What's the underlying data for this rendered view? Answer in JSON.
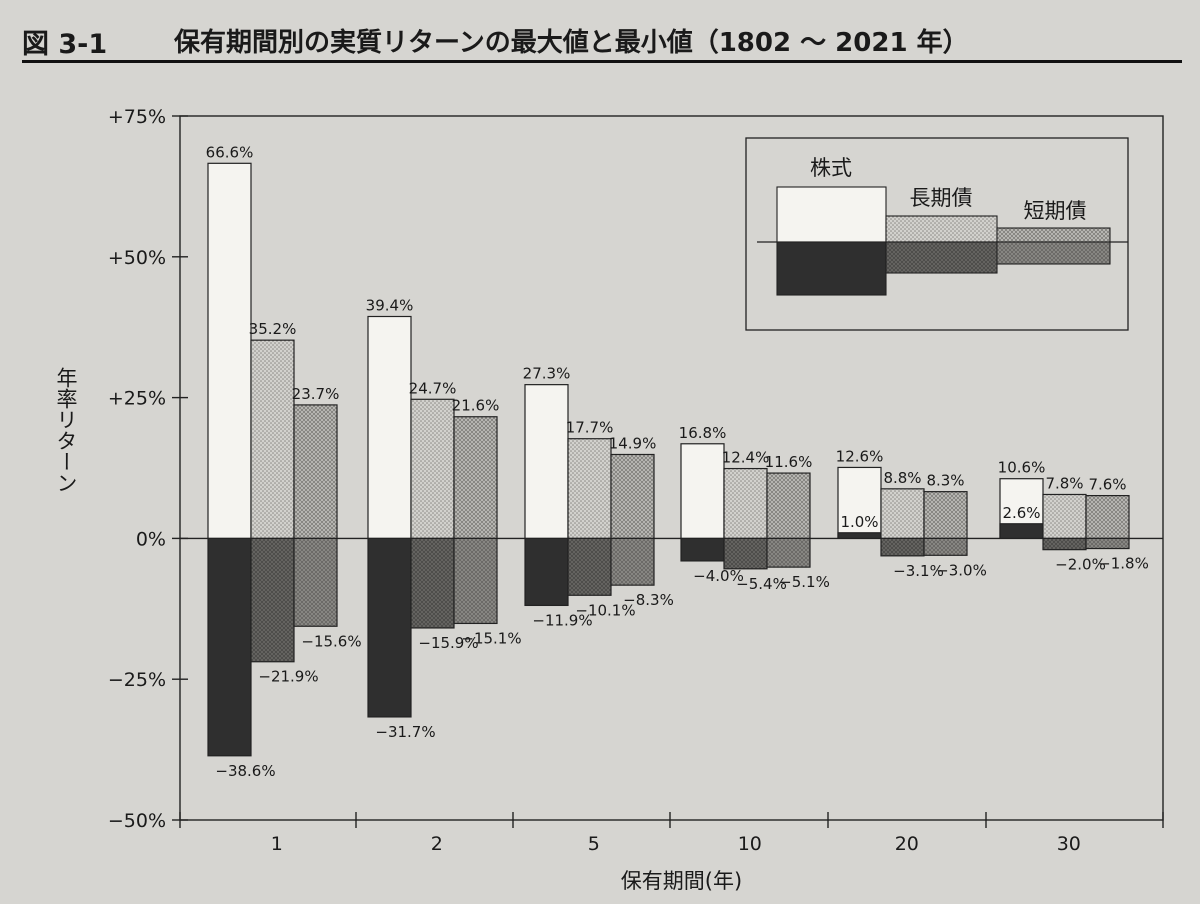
{
  "figure": {
    "number": "図 3-1",
    "title": "保有期間別の実質リターンの最大値と最小値（1802 ～ 2021 年）"
  },
  "chart_data": {
    "type": "bar",
    "xlabel": "保有期間(年)",
    "ylabel": "年率リターン",
    "ylim": [
      -50,
      75
    ],
    "yticks": [
      75,
      50,
      25,
      0,
      -25,
      -50
    ],
    "ytick_labels": [
      "+75%",
      "+50%",
      "+25%",
      "0%",
      "−25%",
      "−50%"
    ],
    "categories": [
      "1",
      "2",
      "5",
      "10",
      "20",
      "30"
    ],
    "series": [
      {
        "name": "株式",
        "max": [
          66.6,
          39.4,
          27.3,
          16.8,
          12.6,
          10.6
        ],
        "min": [
          -38.6,
          -31.7,
          -11.9,
          -4.0,
          1.0,
          2.6
        ]
      },
      {
        "name": "長期債",
        "max": [
          35.2,
          24.7,
          17.7,
          12.4,
          8.8,
          7.8
        ],
        "min": [
          -21.9,
          -15.9,
          -10.1,
          -5.4,
          -3.1,
          -2.0
        ]
      },
      {
        "name": "短期債",
        "max": [
          23.7,
          21.6,
          14.9,
          11.6,
          8.3,
          7.6
        ],
        "min": [
          -15.6,
          -15.1,
          -8.3,
          -5.1,
          -3.0,
          -1.8
        ]
      }
    ],
    "max_labels": [
      [
        "66.6%",
        "39.4%",
        "27.3%",
        "16.8%",
        "12.6%",
        "10.6%"
      ],
      [
        "35.2%",
        "24.7%",
        "17.7%",
        "12.4%",
        "8.8%",
        "7.8%"
      ],
      [
        "23.7%",
        "21.6%",
        "14.9%",
        "11.6%",
        "8.3%",
        "7.6%"
      ]
    ],
    "min_labels": [
      [
        "−38.6%",
        "−31.7%",
        "−11.9%",
        "−4.0%",
        "1.0%",
        "2.6%"
      ],
      [
        "−21.9%",
        "−15.9%",
        "−10.1%",
        "−5.4%",
        "−3.1%",
        "−2.0%"
      ],
      [
        "−15.6%",
        "−15.1%",
        "−8.3%",
        "−5.1%",
        "−3.0%",
        "−1.8%"
      ]
    ],
    "legend": {
      "position": "top-right",
      "labels": [
        "株式",
        "長期債",
        "短期債"
      ]
    },
    "colors": {
      "frame": "#222222",
      "max_fill": [
        "#f1f0ec",
        "#c9c8c4",
        "#b9b8b4"
      ],
      "min_fill": [
        "#333333",
        "#6f6e6b",
        "#8e8d8a"
      ]
    }
  }
}
